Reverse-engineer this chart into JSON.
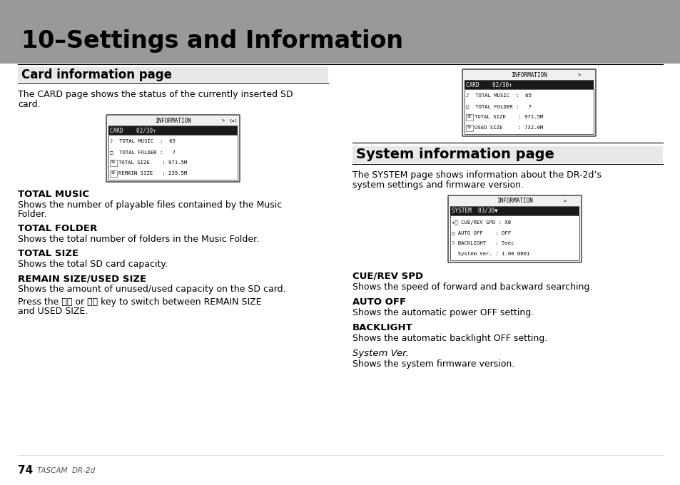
{
  "title": "10–Settings and Information",
  "title_bg": "#999999",
  "page_bg": "#ffffff",
  "page_number": "74",
  "page_brand": "TASCAM  DR-2d",
  "left_section_heading": "Card information page",
  "left_intro_lines": [
    "The CARD page shows the status of the currently inserted SD",
    "card."
  ],
  "right_section_heading": "System information page",
  "right_intro_lines": [
    "The SYSTEM page shows information about the DR-2d’s",
    "system settings and firmware version."
  ],
  "sections_left": [
    {
      "heading": "TOTAL MUSIC",
      "body_lines": [
        "Shows the number of playable files contained by the Music",
        "Folder."
      ]
    },
    {
      "heading": "TOTAL FOLDER",
      "body_lines": [
        "Shows the total number of folders in the Music Folder."
      ]
    },
    {
      "heading": "TOTAL SIZE",
      "body_lines": [
        "Shows the total SD card capacity."
      ]
    },
    {
      "heading": "REMAIN SIZE/USED SIZE",
      "body_lines": [
        "Shows the amount of unused/used capacity on the SD card.",
        "",
        "Press the ⏮⏮ or ⏭⏭ key to switch between REMAIN SIZE",
        "and USED SIZE."
      ]
    }
  ],
  "sections_right": [
    {
      "heading": "CUE/REV SPD",
      "heading_bold": true,
      "body_lines": [
        "Shows the speed of forward and backward searching."
      ]
    },
    {
      "heading": "AUTO OFF",
      "heading_bold": true,
      "body_lines": [
        "Shows the automatic power OFF setting."
      ]
    },
    {
      "heading": "BACKLIGHT",
      "heading_bold": true,
      "body_lines": [
        "Shows the automatic backlight OFF setting."
      ]
    },
    {
      "heading": "System Ver.",
      "heading_bold": false,
      "heading_italic": true,
      "body_lines": [
        "Shows the system firmware version."
      ]
    }
  ]
}
